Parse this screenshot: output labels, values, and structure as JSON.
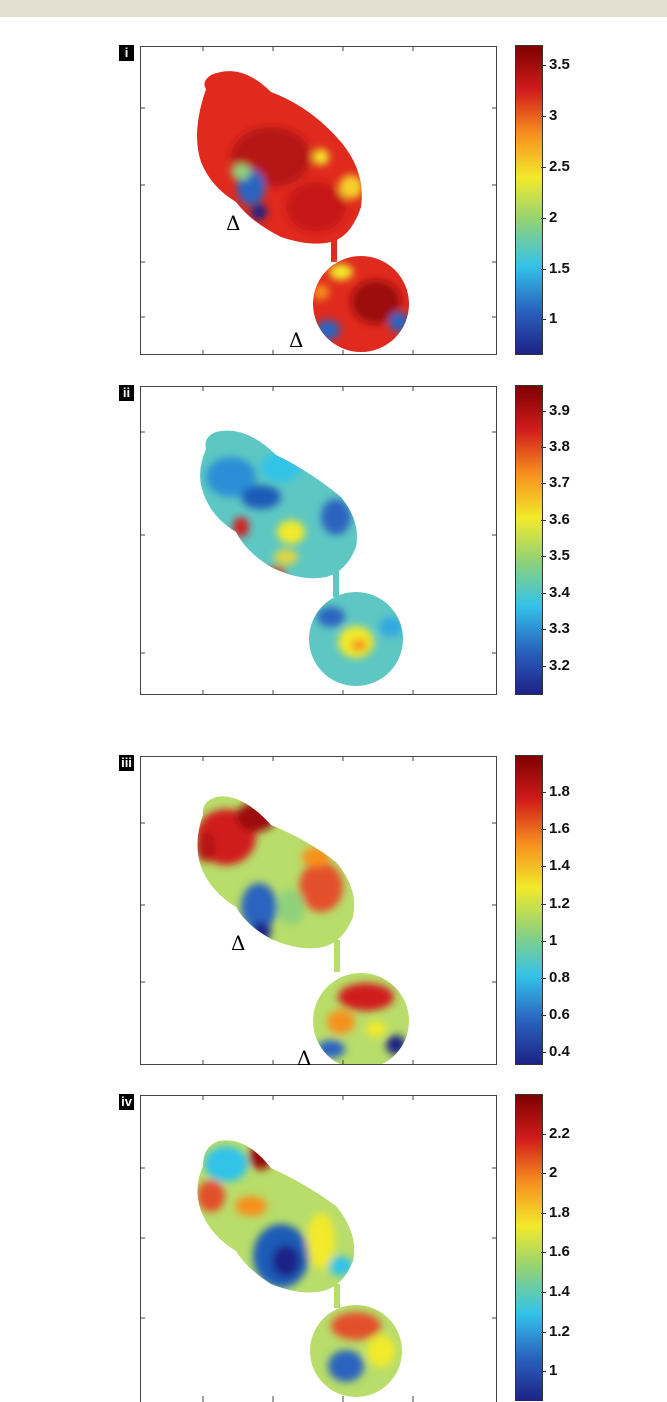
{
  "chart_data": [
    {
      "type": "heatmap",
      "panel_label": "i",
      "colorbar": {
        "ticks": [
          "3.5",
          "3",
          "2.5",
          "2",
          "1.5",
          "1"
        ],
        "range": [
          0.65,
          3.7
        ]
      },
      "annotations": [
        "Δ",
        "Δ"
      ]
    },
    {
      "type": "heatmap",
      "panel_label": "ii",
      "colorbar": {
        "ticks": [
          "3.9",
          "3.8",
          "3.7",
          "3.6",
          "3.5",
          "3.4",
          "3.3",
          "3.2"
        ],
        "range": [
          3.12,
          3.97
        ]
      },
      "annotations": []
    },
    {
      "type": "heatmap",
      "panel_label": "iii",
      "colorbar": {
        "ticks": [
          "1.8",
          "1.6",
          "1.4",
          "1.2",
          "1",
          "0.8",
          "0.6",
          "0.4"
        ],
        "range": [
          0.33,
          2.0
        ]
      },
      "annotations": [
        "Δ",
        "Δ"
      ]
    },
    {
      "type": "heatmap",
      "panel_label": "iv",
      "colorbar": {
        "ticks": [
          "2.2",
          "2",
          "1.8",
          "1.6",
          "1.4",
          "1.2",
          "1"
        ],
        "range": [
          0.85,
          2.4
        ]
      },
      "annotations": []
    }
  ],
  "colors": {
    "colormap": [
      "#7f0000",
      "#d11c1c",
      "#f7901e",
      "#f2ea2a",
      "#8fd17a",
      "#33c3e8",
      "#2a63c0",
      "#1d2286"
    ],
    "frame": "#444444",
    "header_band": "#e3dfd0"
  }
}
